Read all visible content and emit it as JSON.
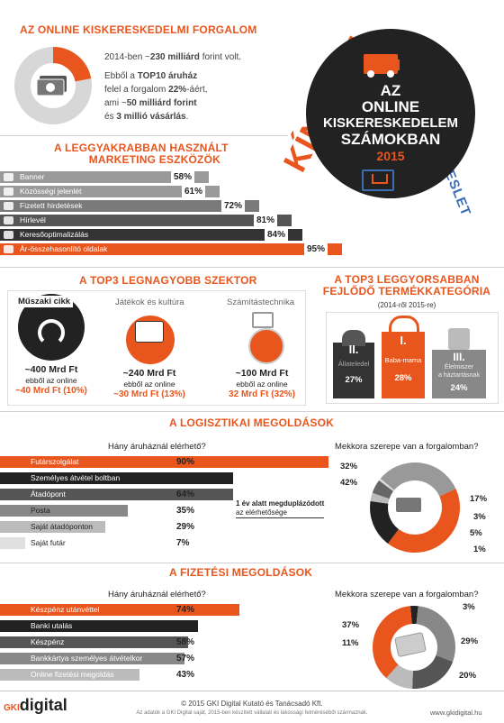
{
  "section1": {
    "title": "AZ ONLINE KISKERESKEDELMI  FORGALOM",
    "line1a": "2014-ben ~",
    "line1b": "230 milliárd",
    "line1c": " forint volt.",
    "line2a": "Ebből a ",
    "line2b": "TOP10 áruház",
    "line3a": "felel a forgalom ",
    "line3b": "22%",
    "line3c": "-áért,",
    "line4a": "ami ~",
    "line4b": "50 milliárd forint",
    "line5a": "és ",
    "line5b": "3 millió vásárlás",
    "line5c": ".",
    "donut_share": 0.22
  },
  "badge": {
    "kinalat": "KÍNÁLAT",
    "kereslet": "KERESLET",
    "line1": "AZ",
    "line2": "ONLINE",
    "line3": "KISKERESKEDELEM",
    "line4": "SZÁMOKBAN",
    "year": "2015"
  },
  "marketing": {
    "title1": "A LEGGYAKRABBAN HASZNÁLT",
    "title2": "MARKETING ESZKÖZÖK",
    "items": [
      {
        "label": "Banner",
        "pct": "58%",
        "value": 58,
        "icon": "banner-icon"
      },
      {
        "label": "Közösségi jelenlét",
        "pct": "61%",
        "value": 61,
        "icon": "facebook-icon"
      },
      {
        "label": "Fizetett hirdetések",
        "pct": "72%",
        "value": 72,
        "icon": "megaphone-icon"
      },
      {
        "label": "Hírlevél",
        "pct": "81%",
        "value": 81,
        "icon": "envelope-icon"
      },
      {
        "label": "Keresőoptimalizálás",
        "pct": "84%",
        "value": 84,
        "icon": "scale-icon"
      },
      {
        "label": "Ár-összehasonlító oldalak",
        "pct": "95%",
        "value": 95,
        "icon": "price-tag-icon"
      }
    ]
  },
  "top3": {
    "title": "A TOP3 LEGNAGYOBB SZEKTOR",
    "sectors": [
      {
        "name": "Műszaki cikk",
        "total": "~400 Mrd Ft",
        "sub": "ebből az online",
        "online": "~40 Mrd Ft (10%)"
      },
      {
        "name": "Játékok és kultúra",
        "total": "~240 Mrd Ft",
        "sub": "ebből az online",
        "online": "~30 Mrd Ft (13%)"
      },
      {
        "name": "Számítástechnika",
        "total": "~100 Mrd Ft",
        "sub": "ebből az online",
        "online": "32 Mrd Ft (32%)"
      }
    ]
  },
  "fastest": {
    "title1": "A TOP3 LEGGYORSABBAN",
    "title2": "FEJLŐDŐ TERMÉKKATEGÓRIA",
    "sub": "(2014-ről 2015-re)",
    "items": [
      {
        "rank": "II.",
        "name": "Állateledel",
        "pct": "27%"
      },
      {
        "rank": "I.",
        "name": "Baba-mama",
        "pct": "28%"
      },
      {
        "rank": "III.",
        "name": "Élelmiszer\na háztartásnak",
        "pct": "24%"
      }
    ]
  },
  "logistics": {
    "title": "A LOGISZTIKAI MEGOLDÁSOK",
    "q_left": "Hány áruháznál elérhető?",
    "q_right": "Mekkora szerepe van a forgalomban?",
    "note1": "1 év alatt megduplázódott",
    "note2": "az elérhetősége",
    "items": [
      {
        "label": "Futárszolgálat",
        "pct": "90%",
        "value": 90
      },
      {
        "label": "Személyes átvétel boltban",
        "pct": "64%",
        "value": 64
      },
      {
        "label": "Átadópont",
        "pct": "64%",
        "value": 64
      },
      {
        "label": "Posta",
        "pct": "35%",
        "value": 35
      },
      {
        "label": "Saját átadóponton",
        "pct": "29%",
        "value": 29
      },
      {
        "label": "Saját futár",
        "pct": "7%",
        "value": 7
      }
    ],
    "donut": [
      {
        "label": "32%",
        "value": 32,
        "color": "#999999"
      },
      {
        "label": "42%",
        "value": 42,
        "color": "#e8561e"
      },
      {
        "label": "17%",
        "value": 17,
        "color": "#222222"
      },
      {
        "label": "3%",
        "value": 3,
        "color": "#bbbbbb"
      },
      {
        "label": "5%",
        "value": 5,
        "color": "#666666"
      },
      {
        "label": "1%",
        "value": 1,
        "color": "#dddddd"
      }
    ]
  },
  "payment": {
    "title": "A FIZETÉSI MEGOLDÁSOK",
    "q_left": "Hány áruháznál elérhető?",
    "q_right": "Mekkora szerepe van a forgalomban?",
    "items": [
      {
        "label": "Készpénz utánvéttel",
        "pct": "74%",
        "value": 74
      },
      {
        "label": "Banki utalás",
        "pct": "61%",
        "value": 61
      },
      {
        "label": "Készpénz",
        "pct": "58%",
        "value": 58
      },
      {
        "label": "Bankkártya személyes átvételkor",
        "pct": "57%",
        "value": 57
      },
      {
        "label": "Online fizetési megoldás",
        "pct": "43%",
        "value": 43
      }
    ],
    "donut": [
      {
        "label": "3%",
        "value": 3,
        "color": "#222222"
      },
      {
        "label": "29%",
        "value": 29,
        "color": "#888888"
      },
      {
        "label": "20%",
        "value": 20,
        "color": "#555555"
      },
      {
        "label": "11%",
        "value": 11,
        "color": "#bbbbbb"
      },
      {
        "label": "37%",
        "value": 37,
        "color": "#e8561e"
      }
    ]
  },
  "footer": {
    "logo_a": "GKI",
    "logo_b": "digital",
    "copyright": "© 2015 GKI Digital Kutató és Tanácsadó Kft.",
    "note": "Az adatok a GKI Digital saját, 2015-ben készített vállalati és lakossági felméréséből származnak.",
    "url": "www.gkidigital.hu"
  },
  "colors": {
    "accent": "#e8561e",
    "dark": "#222222",
    "grey": "#9a9a9a"
  }
}
